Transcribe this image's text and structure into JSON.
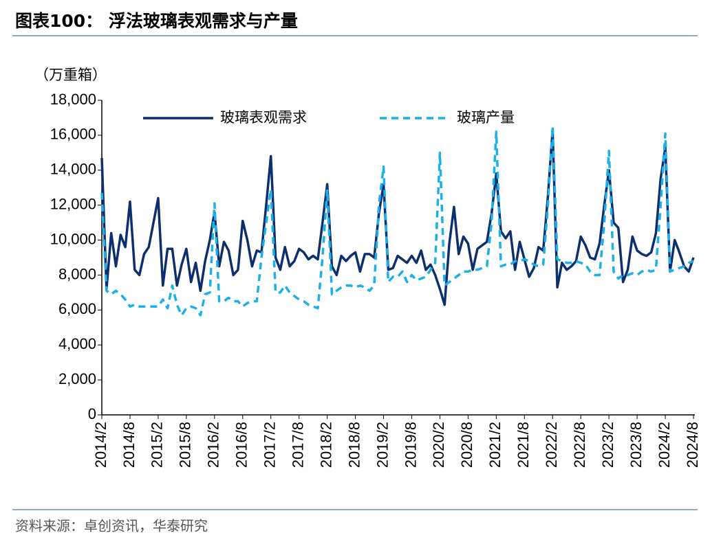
{
  "chart_data": {
    "type": "line",
    "title": "图表100：  浮法玻璃表观需求与产量",
    "y_unit": "（万重箱）",
    "source": "资料来源：卓创资讯，华泰研究",
    "categories": [
      "2014/2",
      null,
      null,
      null,
      null,
      null,
      "2014/8",
      null,
      null,
      null,
      null,
      null,
      "2015/2",
      null,
      null,
      null,
      null,
      null,
      "2015/8",
      null,
      null,
      null,
      null,
      null,
      "2016/2",
      null,
      null,
      null,
      null,
      null,
      "2016/8",
      null,
      null,
      null,
      null,
      null,
      "2017/2",
      null,
      null,
      null,
      null,
      null,
      "2017/8",
      null,
      null,
      null,
      null,
      null,
      "2018/2",
      null,
      null,
      null,
      null,
      null,
      "2018/8",
      null,
      null,
      null,
      null,
      null,
      "2019/2",
      null,
      null,
      null,
      null,
      null,
      "2019/8",
      null,
      null,
      null,
      null,
      null,
      "2020/2",
      null,
      null,
      null,
      null,
      null,
      "2020/8",
      null,
      null,
      null,
      null,
      null,
      "2021/2",
      null,
      null,
      null,
      null,
      null,
      "2021/8",
      null,
      null,
      null,
      null,
      null,
      "2022/2",
      null,
      null,
      null,
      null,
      null,
      "2022/8",
      null,
      null,
      null,
      null,
      null,
      "2023/2",
      null,
      null,
      null,
      null,
      null,
      "2023/8",
      null,
      null,
      null,
      null,
      null,
      "2024/2",
      null,
      null,
      null,
      null,
      null,
      "2024/8"
    ],
    "series": [
      {
        "name": "玻璃表观需求",
        "color": "#0d2f6e",
        "dash": false,
        "values": [
          14700,
          7200,
          10400,
          8500,
          10300,
          9600,
          12200,
          8300,
          8000,
          9200,
          9600,
          11000,
          12400,
          7400,
          9500,
          9500,
          7400,
          8600,
          9500,
          7600,
          8700,
          7100,
          8800,
          10000,
          11600,
          8500,
          9900,
          9400,
          8000,
          8300,
          11100,
          10000,
          8500,
          9400,
          9300,
          12000,
          14800,
          9000,
          8300,
          9600,
          8500,
          8800,
          9500,
          9300,
          8900,
          9100,
          8900,
          11000,
          13200,
          8500,
          8000,
          9100,
          8800,
          9100,
          9300,
          8200,
          9200,
          9200,
          9000,
          11500,
          13200,
          8300,
          8400,
          9100,
          8900,
          8700,
          9100,
          8700,
          9400,
          8300,
          8600,
          8000,
          7200,
          6300,
          9800,
          11900,
          9200,
          10200,
          9800,
          8300,
          9500,
          9700,
          9900,
          11500,
          13800,
          10500,
          10100,
          10500,
          8300,
          9900,
          8900,
          7900,
          8400,
          9600,
          9400,
          12500,
          16300,
          7300,
          8700,
          8300,
          8500,
          8800,
          10200,
          9700,
          9000,
          8900,
          9800,
          12000,
          14000,
          11000,
          10700,
          7600,
          8300,
          10200,
          9400,
          9200,
          9100,
          9300,
          10400,
          13500,
          15300,
          8200,
          10000,
          9300,
          8500,
          8200,
          9000
        ]
      },
      {
        "name": "玻璃产量",
        "color": "#1ab0e8",
        "dash": true,
        "values": [
          12700,
          7100,
          6900,
          7100,
          6900,
          6600,
          6200,
          6300,
          6200,
          6200,
          6200,
          6200,
          6200,
          6600,
          6100,
          7400,
          6300,
          5700,
          6100,
          6200,
          6100,
          5700,
          6900,
          7000,
          12100,
          6500,
          6500,
          6700,
          6500,
          6500,
          6200,
          6400,
          6500,
          6500,
          9000,
          11000,
          12900,
          7000,
          7000,
          7400,
          7000,
          6800,
          6600,
          6500,
          6300,
          6200,
          6100,
          9000,
          12900,
          6900,
          7100,
          7300,
          7400,
          7400,
          7300,
          7400,
          7300,
          7100,
          7400,
          12000,
          14200,
          7600,
          7900,
          7900,
          8200,
          7600,
          8000,
          7700,
          7800,
          7900,
          8300,
          8700,
          15000,
          7400,
          7600,
          7800,
          8000,
          8200,
          8200,
          8300,
          8300,
          8400,
          8500,
          11000,
          16200,
          8500,
          8600,
          8600,
          8800,
          8800,
          8900,
          8800,
          8600,
          8500,
          8600,
          12000,
          16500,
          8900,
          8800,
          8700,
          8700,
          8800,
          8700,
          8600,
          8200,
          8000,
          8000,
          11000,
          15100,
          8200,
          7800,
          8000,
          8000,
          8100,
          8000,
          8200,
          8300,
          8200,
          8300,
          12000,
          16100,
          8200,
          8300,
          8400,
          8500,
          8700,
          8800
        ]
      }
    ],
    "ylim": [
      0,
      18000
    ],
    "yticks": [
      0,
      {
        "value": 2000,
        "label": "2,000"
      },
      {
        "value": 4000,
        "label": "4,000"
      },
      {
        "value": 6000,
        "label": "6,000"
      },
      {
        "value": 8000,
        "label": "8,000"
      },
      {
        "value": 10000,
        "label": "10,000"
      },
      {
        "value": 12000,
        "label": "12,000"
      },
      {
        "value": 14000,
        "label": "14,000"
      },
      {
        "value": 16000,
        "label": "16,000"
      },
      {
        "value": 18000,
        "label": "18,000"
      }
    ]
  }
}
